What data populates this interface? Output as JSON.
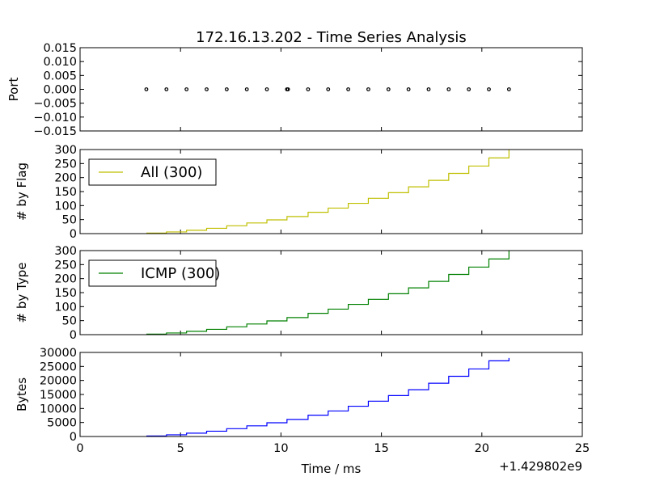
{
  "chart_data": [
    {
      "type": "scatter",
      "title": "172.16.13.202 - Time Series Analysis",
      "ylabel": "Port",
      "xlim": [
        0,
        25
      ],
      "ylim": [
        -0.015,
        0.015
      ],
      "yticks": [
        0.015,
        0.01,
        0.005,
        0.0,
        -0.005,
        -0.01,
        -0.015
      ],
      "ytick_labels": [
        "0.015",
        "0.010",
        "0.005",
        "0.000",
        "−0.005",
        "−0.010",
        "−0.015"
      ],
      "marker_color": "#000000",
      "x": [
        3.3,
        4.3,
        5.3,
        6.3,
        7.3,
        8.3,
        9.3,
        10.3,
        10.35,
        11.35,
        12.35,
        13.35,
        14.35,
        15.35,
        16.35,
        17.35,
        18.35,
        19.35,
        20.35,
        21.35
      ],
      "y": [
        0,
        0,
        0,
        0,
        0,
        0,
        0,
        0,
        0,
        0,
        0,
        0,
        0,
        0,
        0,
        0,
        0,
        0,
        0,
        0
      ]
    },
    {
      "type": "line",
      "ylabel": "# by Flag",
      "xlim": [
        0,
        25
      ],
      "ylim": [
        0,
        300
      ],
      "yticks": [
        300,
        250,
        200,
        150,
        100,
        50,
        0
      ],
      "legend": "upper-left",
      "series": [
        {
          "name": "All (300)",
          "color": "#bfbf00",
          "step_x": [
            3.3,
            4.3,
            5.3,
            6.3,
            7.3,
            8.3,
            9.3,
            10.3,
            11.35,
            12.35,
            13.35,
            14.35,
            15.35,
            16.35,
            17.35,
            18.35,
            19.35,
            20.35,
            21.35
          ],
          "step_y": [
            2,
            6,
            12,
            19,
            28,
            38,
            49,
            61,
            76,
            91,
            108,
            126,
            146,
            167,
            190,
            215,
            241,
            270,
            300
          ]
        }
      ]
    },
    {
      "type": "line",
      "ylabel": "# by Type",
      "xlim": [
        0,
        25
      ],
      "ylim": [
        0,
        300
      ],
      "yticks": [
        300,
        250,
        200,
        150,
        100,
        50,
        0
      ],
      "legend": "upper-left",
      "series": [
        {
          "name": "ICMP (300)",
          "color": "#008000",
          "step_x": [
            3.3,
            4.3,
            5.3,
            6.3,
            7.3,
            8.3,
            9.3,
            10.3,
            11.35,
            12.35,
            13.35,
            14.35,
            15.35,
            16.35,
            17.35,
            18.35,
            19.35,
            20.35,
            21.35
          ],
          "step_y": [
            2,
            6,
            12,
            19,
            28,
            38,
            49,
            61,
            76,
            91,
            108,
            126,
            146,
            167,
            190,
            215,
            241,
            270,
            300
          ]
        }
      ]
    },
    {
      "type": "line",
      "ylabel": "Bytes",
      "xlabel": "Time / ms",
      "x_offset_label": "+1.429802e9",
      "xlim": [
        0,
        25
      ],
      "ylim": [
        0,
        30000
      ],
      "xticks": [
        0,
        5,
        10,
        15,
        20,
        25
      ],
      "yticks": [
        30000,
        25000,
        20000,
        15000,
        10000,
        5000,
        0
      ],
      "series": [
        {
          "color": "#0000ff",
          "step_x": [
            3.3,
            4.3,
            5.3,
            6.3,
            7.3,
            8.3,
            9.3,
            10.3,
            11.35,
            12.35,
            13.35,
            14.35,
            15.35,
            16.35,
            17.35,
            18.35,
            19.35,
            20.35,
            21.35
          ],
          "step_y": [
            200,
            600,
            1200,
            1900,
            2800,
            3800,
            4900,
            6100,
            7600,
            9100,
            10800,
            12600,
            14600,
            16700,
            19000,
            21500,
            24100,
            27000,
            28000
          ]
        }
      ]
    }
  ]
}
